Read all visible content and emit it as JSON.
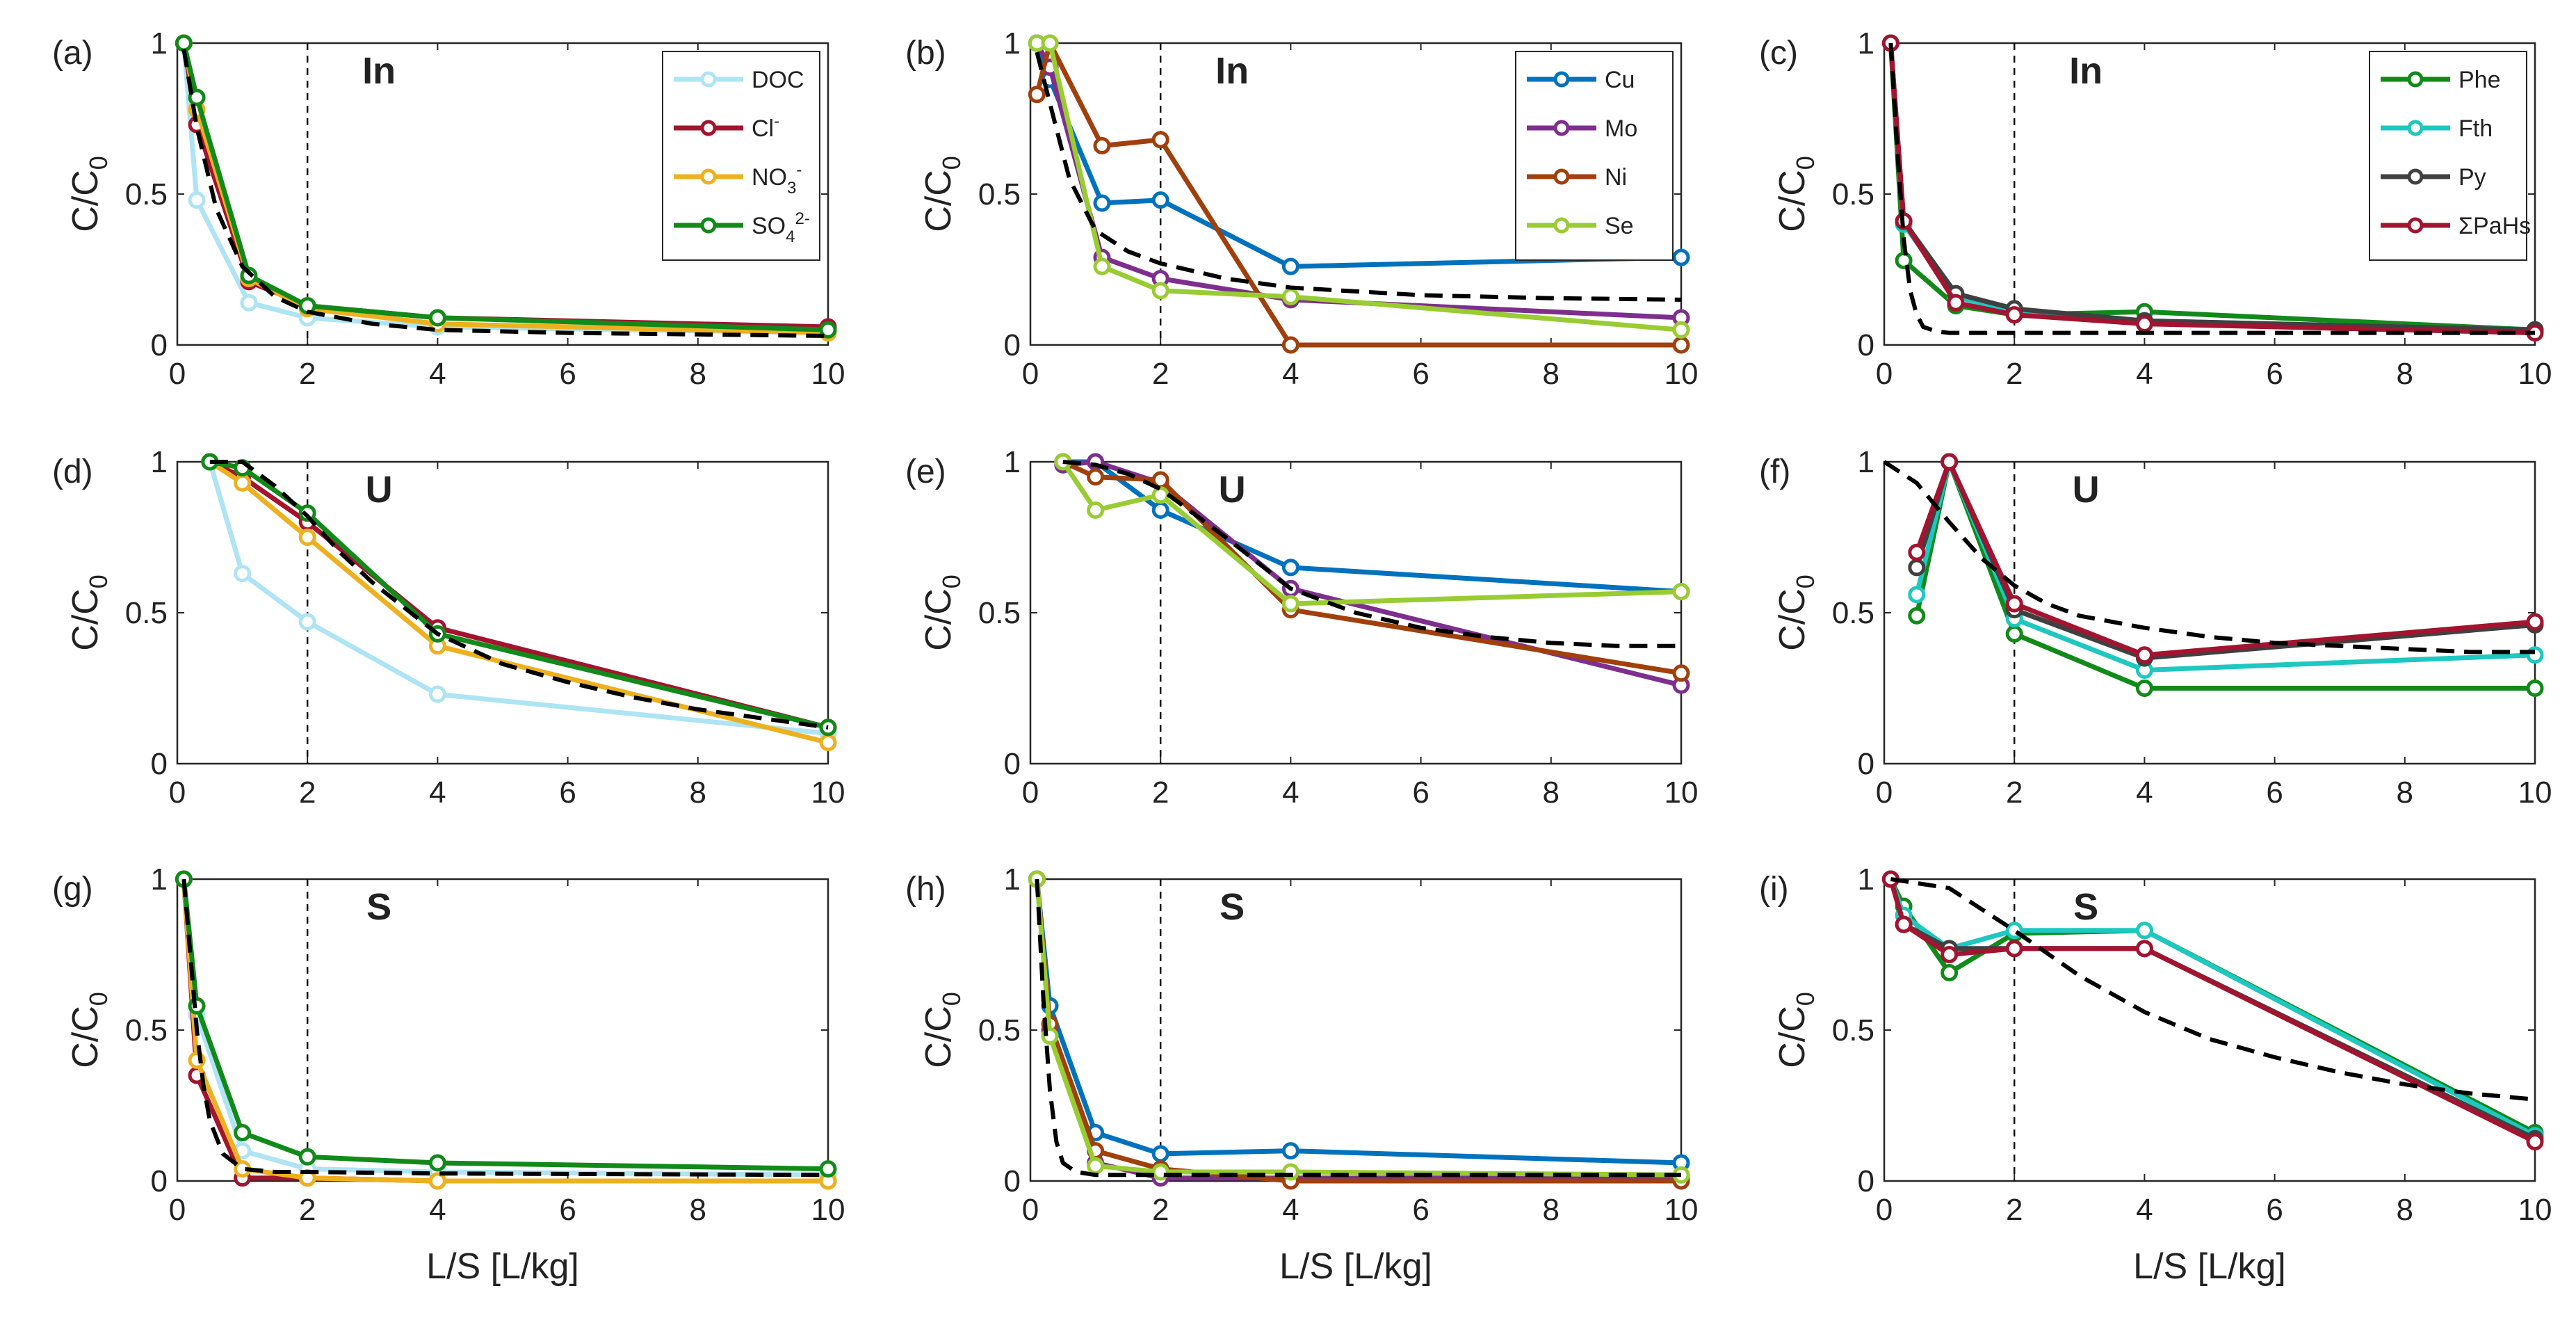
{
  "figure": {
    "xlabel": "L/S [L/kg]",
    "ylabel_main": "C/C",
    "ylabel_sub": "0"
  },
  "chart_data": [
    {
      "type": "line",
      "panel": "(a)",
      "title": "In",
      "xlim": [
        0,
        10
      ],
      "ylim": [
        0,
        1
      ],
      "xticks": [
        "0",
        "2",
        "4",
        "6",
        "8",
        "10"
      ],
      "yticks": [
        "0",
        "0.5",
        "1"
      ],
      "dashed_vline_x": 2,
      "legend_position": "top-right",
      "series": [
        {
          "name": "DOC",
          "legend": [
            "DOC"
          ],
          "color": "#aee4f4",
          "x": [
            0.1,
            0.3,
            1.1,
            2,
            4,
            10
          ],
          "y": [
            1,
            0.48,
            0.14,
            0.09,
            0.06,
            0.04
          ]
        },
        {
          "name": "Cl-",
          "legend": [
            "Cl",
            "-"
          ],
          "color": "#a2142f",
          "x": [
            0.1,
            0.3,
            1.1,
            2,
            4,
            10
          ],
          "y": [
            1,
            0.73,
            0.21,
            0.13,
            0.09,
            0.06
          ]
        },
        {
          "name": "NO3-",
          "legend": [
            "NO",
            "3",
            "-"
          ],
          "color": "#edb120",
          "x": [
            0.1,
            0.3,
            1.1,
            2,
            4,
            10
          ],
          "y": [
            1,
            0.78,
            0.22,
            0.12,
            0.07,
            0.04
          ]
        },
        {
          "name": "SO4 2-",
          "legend": [
            "SO",
            "4",
            "2-"
          ],
          "color": "#118a1a",
          "x": [
            0.1,
            0.3,
            1.1,
            2,
            4,
            10
          ],
          "y": [
            1,
            0.82,
            0.23,
            0.13,
            0.09,
            0.05
          ]
        }
      ],
      "model": {
        "x": [
          0.1,
          0.3,
          0.6,
          1.0,
          1.5,
          2,
          3,
          4,
          6,
          8,
          10
        ],
        "y": [
          0.98,
          0.72,
          0.45,
          0.26,
          0.16,
          0.11,
          0.07,
          0.05,
          0.04,
          0.035,
          0.03
        ]
      }
    },
    {
      "type": "line",
      "panel": "(b)",
      "title": "In",
      "xlim": [
        0,
        10
      ],
      "ylim": [
        0,
        1
      ],
      "xticks": [
        "0",
        "2",
        "4",
        "6",
        "8",
        "10"
      ],
      "yticks": [
        "0",
        "0.5",
        "1"
      ],
      "dashed_vline_x": 2,
      "legend_position": "top-right",
      "series": [
        {
          "name": "Cu",
          "legend": [
            "Cu"
          ],
          "color": "#0072bd",
          "x": [
            0.1,
            0.3,
            1.1,
            2,
            4,
            10
          ],
          "y": [
            1,
            0.88,
            0.47,
            0.48,
            0.26,
            0.29
          ]
        },
        {
          "name": "Mo",
          "legend": [
            "Mo"
          ],
          "color": "#7e2f8e",
          "x": [
            0.1,
            0.3,
            1.1,
            2,
            4,
            10
          ],
          "y": [
            1,
            0.92,
            0.29,
            0.22,
            0.15,
            0.09
          ]
        },
        {
          "name": "Ni",
          "legend": [
            "Ni"
          ],
          "color": "#a0400c",
          "x": [
            0.1,
            0.3,
            1.1,
            2,
            4,
            10
          ],
          "y": [
            0.83,
            1,
            0.66,
            0.68,
            0,
            0
          ]
        },
        {
          "name": "Se",
          "legend": [
            "Se"
          ],
          "color": "#99cc33",
          "x": [
            0.1,
            0.3,
            1.1,
            2,
            4,
            10
          ],
          "y": [
            1,
            1,
            0.26,
            0.18,
            0.16,
            0.05
          ]
        }
      ],
      "model": {
        "x": [
          0.1,
          0.3,
          0.6,
          1.0,
          1.5,
          2,
          3,
          4,
          6,
          8,
          10
        ],
        "y": [
          0.97,
          0.8,
          0.55,
          0.38,
          0.31,
          0.27,
          0.22,
          0.19,
          0.165,
          0.155,
          0.15
        ]
      }
    },
    {
      "type": "line",
      "panel": "(c)",
      "title": "In",
      "xlim": [
        0,
        10
      ],
      "ylim": [
        0,
        1
      ],
      "xticks": [
        "0",
        "2",
        "4",
        "6",
        "8",
        "10"
      ],
      "yticks": [
        "0",
        "0.5",
        "1"
      ],
      "dashed_vline_x": 2,
      "legend_position": "top-right",
      "series": [
        {
          "name": "Phe",
          "legend": [
            "Phe"
          ],
          "color": "#118a1a",
          "x": [
            0.1,
            0.3,
            1.1,
            2,
            4,
            10
          ],
          "y": [
            1,
            0.28,
            0.13,
            0.1,
            0.11,
            0.05
          ]
        },
        {
          "name": "Fth",
          "legend": [
            "Fth"
          ],
          "color": "#1ec8c0",
          "x": [
            0.1,
            0.3,
            1.1,
            2,
            4,
            10
          ],
          "y": [
            1,
            0.4,
            0.16,
            0.11,
            0.08,
            0.05
          ]
        },
        {
          "name": "Py",
          "legend": [
            "Py"
          ],
          "color": "#404040",
          "x": [
            0.1,
            0.3,
            1.1,
            2,
            4,
            10
          ],
          "y": [
            1,
            0.41,
            0.17,
            0.12,
            0.08,
            0.05
          ]
        },
        {
          "name": "ΣPaHs",
          "legend": [
            "ΣPaHs"
          ],
          "color": "#a2142f",
          "x": [
            0.1,
            0.3,
            1.1,
            2,
            4,
            10
          ],
          "y": [
            1,
            0.41,
            0.14,
            0.1,
            0.07,
            0.04
          ]
        }
      ],
      "model": {
        "x": [
          0.1,
          0.2,
          0.3,
          0.4,
          0.5,
          0.6,
          0.8,
          1.0,
          1.5,
          2,
          4,
          10
        ],
        "y": [
          1,
          0.65,
          0.35,
          0.18,
          0.1,
          0.06,
          0.045,
          0.04,
          0.04,
          0.04,
          0.04,
          0.04
        ]
      }
    },
    {
      "type": "line",
      "panel": "(d)",
      "title": "U",
      "xlim": [
        0,
        10
      ],
      "ylim": [
        0,
        1
      ],
      "xticks": [
        "0",
        "2",
        "4",
        "6",
        "8",
        "10"
      ],
      "yticks": [
        "0",
        "0.5",
        "1"
      ],
      "dashed_vline_x": 2,
      "series": [
        {
          "name": "DOC",
          "color": "#aee4f4",
          "x": [
            0.5,
            1,
            2,
            4,
            10
          ],
          "y": [
            1,
            0.63,
            0.47,
            0.23,
            0.1
          ]
        },
        {
          "name": "Cl-",
          "color": "#a2142f",
          "x": [
            0.5,
            1,
            2,
            4,
            10
          ],
          "y": [
            1,
            0.95,
            0.8,
            0.45,
            0.12
          ]
        },
        {
          "name": "NO3-",
          "color": "#edb120",
          "x": [
            0.5,
            1,
            2,
            4,
            10
          ],
          "y": [
            1,
            0.93,
            0.75,
            0.39,
            0.07
          ]
        },
        {
          "name": "SO4 2-",
          "color": "#118a1a",
          "x": [
            0.5,
            1,
            2,
            4,
            10
          ],
          "y": [
            1,
            0.98,
            0.83,
            0.43,
            0.12
          ]
        }
      ],
      "model": {
        "x": [
          0.5,
          1,
          1.5,
          2,
          2.5,
          3,
          4,
          5,
          6,
          7,
          8,
          9,
          10
        ],
        "y": [
          1,
          1,
          0.92,
          0.82,
          0.7,
          0.6,
          0.43,
          0.33,
          0.27,
          0.22,
          0.18,
          0.15,
          0.12
        ]
      }
    },
    {
      "type": "line",
      "panel": "(e)",
      "title": "U",
      "xlim": [
        0,
        10
      ],
      "ylim": [
        0,
        1
      ],
      "xticks": [
        "0",
        "2",
        "4",
        "6",
        "8",
        "10"
      ],
      "yticks": [
        "0",
        "0.5",
        "1"
      ],
      "dashed_vline_x": 2,
      "series": [
        {
          "name": "Cu",
          "color": "#0072bd",
          "x": [
            0.5,
            1,
            2,
            4,
            10
          ],
          "y": [
            1,
            1,
            0.84,
            0.65,
            0.57
          ]
        },
        {
          "name": "Mo",
          "color": "#7e2f8e",
          "x": [
            0.5,
            1,
            2,
            4,
            10
          ],
          "y": [
            0.99,
            1,
            0.93,
            0.58,
            0.26
          ]
        },
        {
          "name": "Ni",
          "color": "#a0400c",
          "x": [
            0.5,
            1,
            2,
            4,
            10
          ],
          "y": [
            1,
            0.95,
            0.94,
            0.51,
            0.3
          ]
        },
        {
          "name": "Se",
          "color": "#99cc33",
          "x": [
            0.5,
            1,
            2,
            4,
            10
          ],
          "y": [
            1,
            0.84,
            0.89,
            0.53,
            0.57
          ]
        }
      ],
      "model": {
        "x": [
          0.5,
          1,
          1.5,
          2,
          3,
          4,
          5,
          6,
          7,
          8,
          9,
          10
        ],
        "y": [
          1,
          0.99,
          0.96,
          0.91,
          0.75,
          0.58,
          0.5,
          0.45,
          0.42,
          0.4,
          0.39,
          0.39
        ]
      }
    },
    {
      "type": "line",
      "panel": "(f)",
      "title": "U",
      "xlim": [
        0,
        10
      ],
      "ylim": [
        0,
        1
      ],
      "xticks": [
        "0",
        "2",
        "4",
        "6",
        "8",
        "10"
      ],
      "yticks": [
        "0",
        "0.5",
        "1"
      ],
      "dashed_vline_x": 2,
      "series": [
        {
          "name": "Phe",
          "color": "#118a1a",
          "x": [
            0.5,
            1,
            2,
            4,
            10
          ],
          "y": [
            0.49,
            1,
            0.43,
            0.25,
            0.25
          ]
        },
        {
          "name": "Fth",
          "color": "#1ec8c0",
          "x": [
            0.5,
            1,
            2,
            4,
            10
          ],
          "y": [
            0.56,
            1,
            0.48,
            0.31,
            0.36
          ]
        },
        {
          "name": "Py",
          "color": "#404040",
          "x": [
            0.5,
            1,
            2,
            4,
            10
          ],
          "y": [
            0.65,
            1,
            0.51,
            0.35,
            0.46
          ]
        },
        {
          "name": "ΣPaHs",
          "color": "#a2142f",
          "x": [
            0.5,
            1,
            2,
            4,
            10
          ],
          "y": [
            0.7,
            1,
            0.53,
            0.36,
            0.47
          ]
        }
      ],
      "model": {
        "x": [
          0,
          0.5,
          1,
          1.5,
          2,
          2.5,
          3,
          4,
          5,
          6,
          7,
          8,
          9,
          10
        ],
        "y": [
          1,
          0.93,
          0.8,
          0.68,
          0.59,
          0.53,
          0.49,
          0.45,
          0.42,
          0.4,
          0.39,
          0.38,
          0.37,
          0.37
        ]
      }
    },
    {
      "type": "line",
      "panel": "(g)",
      "title": "S",
      "xlim": [
        0,
        10
      ],
      "ylim": [
        0,
        1
      ],
      "xticks": [
        "0",
        "2",
        "4",
        "6",
        "8",
        "10"
      ],
      "yticks": [
        "0",
        "0.5",
        "1"
      ],
      "dashed_vline_x": 2,
      "series": [
        {
          "name": "DOC",
          "color": "#aee4f4",
          "x": [
            0.1,
            0.3,
            1,
            2,
            4,
            10
          ],
          "y": [
            1,
            0.55,
            0.1,
            0.04,
            0.03,
            0.02
          ]
        },
        {
          "name": "Cl-",
          "color": "#a2142f",
          "x": [
            0.1,
            0.3,
            1,
            2,
            4,
            10
          ],
          "y": [
            1,
            0.35,
            0.01,
            0.01,
            0,
            0
          ]
        },
        {
          "name": "NO3-",
          "color": "#edb120",
          "x": [
            0.1,
            0.3,
            1,
            2,
            4,
            10
          ],
          "y": [
            1,
            0.4,
            0.04,
            0.01,
            0,
            0
          ]
        },
        {
          "name": "SO4 2-",
          "color": "#118a1a",
          "x": [
            0.1,
            0.3,
            1,
            2,
            4,
            10
          ],
          "y": [
            1,
            0.58,
            0.16,
            0.08,
            0.06,
            0.04
          ]
        }
      ],
      "model": {
        "x": [
          0.1,
          0.2,
          0.3,
          0.4,
          0.5,
          0.7,
          1.0,
          1.5,
          2,
          4,
          10
        ],
        "y": [
          1,
          0.75,
          0.5,
          0.32,
          0.2,
          0.09,
          0.04,
          0.03,
          0.03,
          0.025,
          0.02
        ]
      }
    },
    {
      "type": "line",
      "panel": "(h)",
      "title": "S",
      "xlim": [
        0,
        10
      ],
      "ylim": [
        0,
        1
      ],
      "xticks": [
        "0",
        "2",
        "4",
        "6",
        "8",
        "10"
      ],
      "yticks": [
        "0",
        "0.5",
        "1"
      ],
      "dashed_vline_x": 2,
      "series": [
        {
          "name": "Cu",
          "color": "#0072bd",
          "x": [
            0.1,
            0.3,
            1,
            2,
            4,
            10
          ],
          "y": [
            1,
            0.58,
            0.16,
            0.09,
            0.1,
            0.06
          ]
        },
        {
          "name": "Mo",
          "color": "#7e2f8e",
          "x": [
            0.1,
            0.3,
            1,
            2,
            4,
            10
          ],
          "y": [
            1,
            0.5,
            0.06,
            0.01,
            0.01,
            0.01
          ]
        },
        {
          "name": "Ni",
          "color": "#a0400c",
          "x": [
            0.1,
            0.3,
            1,
            2,
            4,
            10
          ],
          "y": [
            1,
            0.52,
            0.1,
            0.04,
            0,
            0
          ]
        },
        {
          "name": "Se",
          "color": "#99cc33",
          "x": [
            0.1,
            0.3,
            1,
            2,
            4,
            10
          ],
          "y": [
            1,
            0.48,
            0.05,
            0.03,
            0.03,
            0.02
          ]
        }
      ],
      "model": {
        "x": [
          0.1,
          0.2,
          0.3,
          0.4,
          0.5,
          0.7,
          1.0,
          2,
          4,
          10
        ],
        "y": [
          1,
          0.6,
          0.3,
          0.13,
          0.06,
          0.03,
          0.02,
          0.02,
          0.02,
          0.02
        ]
      }
    },
    {
      "type": "line",
      "panel": "(i)",
      "title": "S",
      "xlim": [
        0,
        10
      ],
      "ylim": [
        0,
        1
      ],
      "xticks": [
        "0",
        "2",
        "4",
        "6",
        "8",
        "10"
      ],
      "yticks": [
        "0",
        "0.5",
        "1"
      ],
      "dashed_vline_x": 2,
      "series": [
        {
          "name": "Phe",
          "color": "#118a1a",
          "x": [
            0.1,
            0.3,
            1,
            2,
            4,
            10
          ],
          "y": [
            1,
            0.91,
            0.69,
            0.82,
            0.83,
            0.16
          ]
        },
        {
          "name": "Fth",
          "color": "#1ec8c0",
          "x": [
            0.1,
            0.3,
            1,
            2,
            4,
            10
          ],
          "y": [
            1,
            0.88,
            0.77,
            0.83,
            0.83,
            0.15
          ]
        },
        {
          "name": "Py",
          "color": "#404040",
          "x": [
            0.1,
            0.3,
            1,
            2,
            4,
            10
          ],
          "y": [
            1,
            0.85,
            0.77,
            0.77,
            0.77,
            0.14
          ]
        },
        {
          "name": "ΣPaHs",
          "color": "#a2142f",
          "x": [
            0.1,
            0.3,
            1,
            2,
            4,
            10
          ],
          "y": [
            1,
            0.85,
            0.75,
            0.77,
            0.77,
            0.13
          ]
        }
      ],
      "model": {
        "x": [
          0.1,
          1,
          2,
          3,
          4,
          5,
          6,
          7,
          8,
          9,
          10
        ],
        "y": [
          1,
          0.97,
          0.83,
          0.68,
          0.56,
          0.47,
          0.41,
          0.36,
          0.32,
          0.29,
          0.27
        ]
      }
    }
  ]
}
